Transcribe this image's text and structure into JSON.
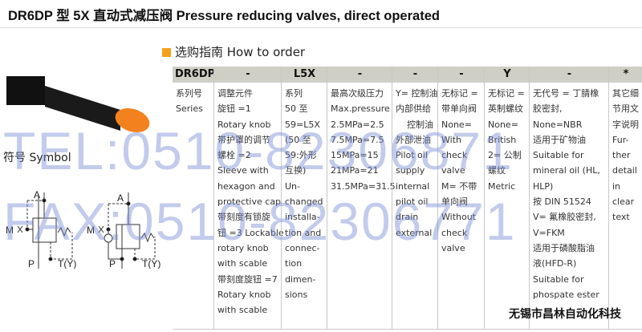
{
  "title": "DR6DP 型 5X 直动式减压阀  Pressure reducing valves, direct operated",
  "subtitle": "选购指南  How to order",
  "symbol_label": "符号  Symbol",
  "symbol_ports": {
    "A": "A",
    "M": "M",
    "P": "P",
    "T": "T(Y)"
  },
  "table": {
    "columns": [
      {
        "header": "DR6DP",
        "lines": [
          "系列号",
          "Series"
        ]
      },
      {
        "header": "-",
        "lines": [
          "调整元件",
          "旋钮 =1",
          "Rotary knob",
          "带护罩的调节",
          "螺栓 =2",
          "Sleeve with",
          "hexagon and",
          "protective cap",
          "带刻度有锁旋",
          "钮 =3 Lockable",
          "rotary knob",
          "with scable",
          "带刻度旋钮 =7",
          "Rotary knob",
          "with scable"
        ]
      },
      {
        "header": "L5X",
        "lines": [
          "系列",
          "50 至",
          "59=L5X",
          "(50 至",
          "59:外形",
          "互换)",
          "Un-",
          "changed",
          "installa-",
          "tion and",
          "connec-",
          "tion",
          "dimen-",
          "sions"
        ]
      },
      {
        "header": "-",
        "lines": [
          "最高次级压力",
          "Max.pressure",
          "2.5MPa=2.5",
          "7.5MPa=7.5",
          "15MPa=15",
          "21MPa=21",
          "31.5MPa=31.5"
        ]
      },
      {
        "header": "-",
        "lines": [
          "Y= 控制油",
          "内部供给",
          "    控制油",
          "外部泄油",
          "Pilot oil",
          "supply",
          "internal",
          "pilot oil",
          "drain",
          "external"
        ]
      },
      {
        "header": "-",
        "lines": [
          "无标记 =",
          "带单向阀",
          "None=",
          "With",
          "check",
          "valve",
          "M= 不带",
          "单向阀",
          "Without",
          "check",
          "valve"
        ]
      },
      {
        "header": "Y",
        "lines": [
          "无标记 =",
          "英制螺纹",
          "None=",
          "British",
          "2= 公制",
          "螺纹",
          "Metric"
        ]
      },
      {
        "header": "-",
        "lines": [
          "无代号 = 丁腈橡",
          "胶密封,",
          "None=NBR",
          "适用于矿物油",
          "Suitable for",
          "mineral oil (HL,",
          "HLP)",
          "按 DIN 51524",
          "V= 氟橡胶密封,",
          "V=FKM",
          "适用于磷酸脂油",
          "液(HFD-R)",
          "Suitable for",
          "phospate ester"
        ]
      },
      {
        "header": "*",
        "lines": [
          "其它细",
          "节用文",
          "字说明",
          "Fur-",
          "ther",
          "detail",
          "in",
          "clear",
          "text"
        ]
      }
    ]
  },
  "watermark": {
    "tel": "TEL:0510-82306871",
    "fax": "FAX:0510-82306771"
  },
  "company": "无锡市昌林自动化科技",
  "colors": {
    "accent": "#f5a01a",
    "header_bg": "#cfcfc6",
    "watermark": "#788cd2"
  }
}
